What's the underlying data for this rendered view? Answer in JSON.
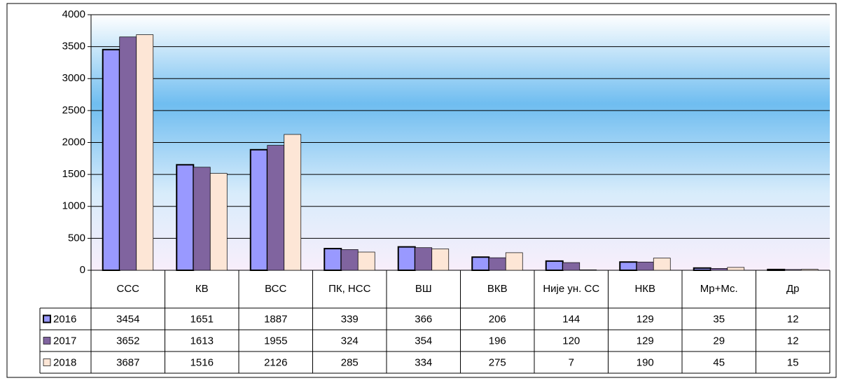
{
  "chart_data": {
    "type": "bar",
    "categories": [
      "ССС",
      "КВ",
      "ВСС",
      "ПК, НСС",
      "ВШ",
      "ВКВ",
      "Није ун. СС",
      "НКВ",
      "Мр+Мс.",
      "Др"
    ],
    "series": [
      {
        "name": "2016",
        "color": "#9999ff",
        "values": [
          3454,
          1651,
          1887,
          339,
          366,
          206,
          144,
          129,
          35,
          12
        ]
      },
      {
        "name": "2017",
        "color": "#80649f",
        "values": [
          3652,
          1613,
          1955,
          324,
          354,
          196,
          120,
          129,
          29,
          12
        ]
      },
      {
        "name": "2018",
        "color": "#fde6d6",
        "values": [
          3687,
          1516,
          2126,
          285,
          334,
          275,
          7,
          190,
          45,
          15
        ]
      }
    ],
    "ylim": [
      0,
      4000
    ],
    "yticks": [
      0,
      500,
      1000,
      1500,
      2000,
      2500,
      3000,
      3500,
      4000
    ],
    "grid": true
  }
}
